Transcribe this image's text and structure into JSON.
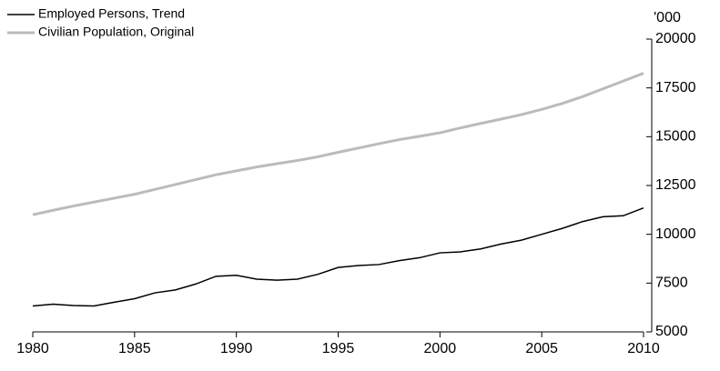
{
  "chart_data": {
    "type": "line",
    "y_label": "'000",
    "x": [
      1980,
      1981,
      1982,
      1983,
      1984,
      1985,
      1986,
      1987,
      1988,
      1989,
      1990,
      1991,
      1992,
      1993,
      1994,
      1995,
      1996,
      1997,
      1998,
      1999,
      2000,
      2001,
      2002,
      2003,
      2004,
      2005,
      2006,
      2007,
      2008,
      2009,
      2010
    ],
    "series": [
      {
        "name": "Employed Persons, Trend",
        "color": "#000000",
        "width": 1.5,
        "values": [
          6330,
          6420,
          6350,
          6330,
          6520,
          6700,
          7000,
          7150,
          7450,
          7850,
          7900,
          7700,
          7650,
          7700,
          7950,
          8300,
          8400,
          8450,
          8650,
          8800,
          9050,
          9100,
          9250,
          9500,
          9700,
          10000,
          10300,
          10650,
          10900,
          10950,
          11350
        ]
      },
      {
        "name": "Civilian Population, Original",
        "color": "#bbbbbb",
        "width": 3,
        "values": [
          11000,
          11230,
          11450,
          11650,
          11850,
          12050,
          12300,
          12550,
          12800,
          13050,
          13250,
          13450,
          13620,
          13780,
          13970,
          14200,
          14420,
          14640,
          14850,
          15020,
          15200,
          15450,
          15680,
          15900,
          16130,
          16400,
          16700,
          17050,
          17450,
          17850,
          18250
        ]
      }
    ],
    "xlim": [
      1980,
      2010
    ],
    "xticks": [
      1980,
      1985,
      1990,
      1995,
      2000,
      2005,
      2010
    ],
    "ylim": [
      5000,
      20000
    ],
    "yticks": [
      5000,
      7500,
      10000,
      12500,
      15000,
      17500,
      20000
    ]
  }
}
